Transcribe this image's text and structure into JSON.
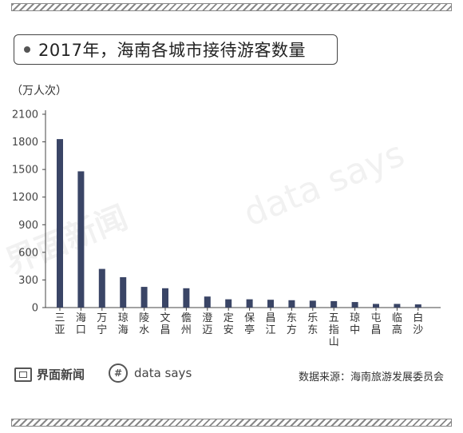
{
  "title": "2017年，海南各城市接待游客数量",
  "unit_label": "（万人次）",
  "footer": {
    "brand": "界面新闻",
    "datasays": "data says",
    "datasays_icon": "hash-circle-icon",
    "source": "数据来源：海南旅游发展委员会"
  },
  "watermarks": [
    "界面新闻",
    "data says"
  ],
  "colors": {
    "bar": "#3a4566",
    "axis": "#444444",
    "stripe": "#888888"
  },
  "chart_data": {
    "type": "bar",
    "title": "2017年，海南各城市接待游客数量",
    "ylabel": "（万人次）",
    "xlabel": "",
    "ylim": [
      0,
      2100
    ],
    "yticks": [
      0,
      300,
      600,
      900,
      1200,
      1500,
      1800,
      2100
    ],
    "grid": false,
    "categories": [
      "三亚",
      "海口",
      "万宁",
      "琼海",
      "陵水",
      "文昌",
      "儋州",
      "澄迈",
      "定安",
      "保亭",
      "昌江",
      "东方",
      "乐东",
      "五指山",
      "琼中",
      "屯昌",
      "临高",
      "白沙"
    ],
    "values": [
      1830,
      1480,
      420,
      330,
      225,
      210,
      210,
      120,
      90,
      90,
      85,
      80,
      75,
      70,
      60,
      40,
      40,
      35
    ]
  }
}
